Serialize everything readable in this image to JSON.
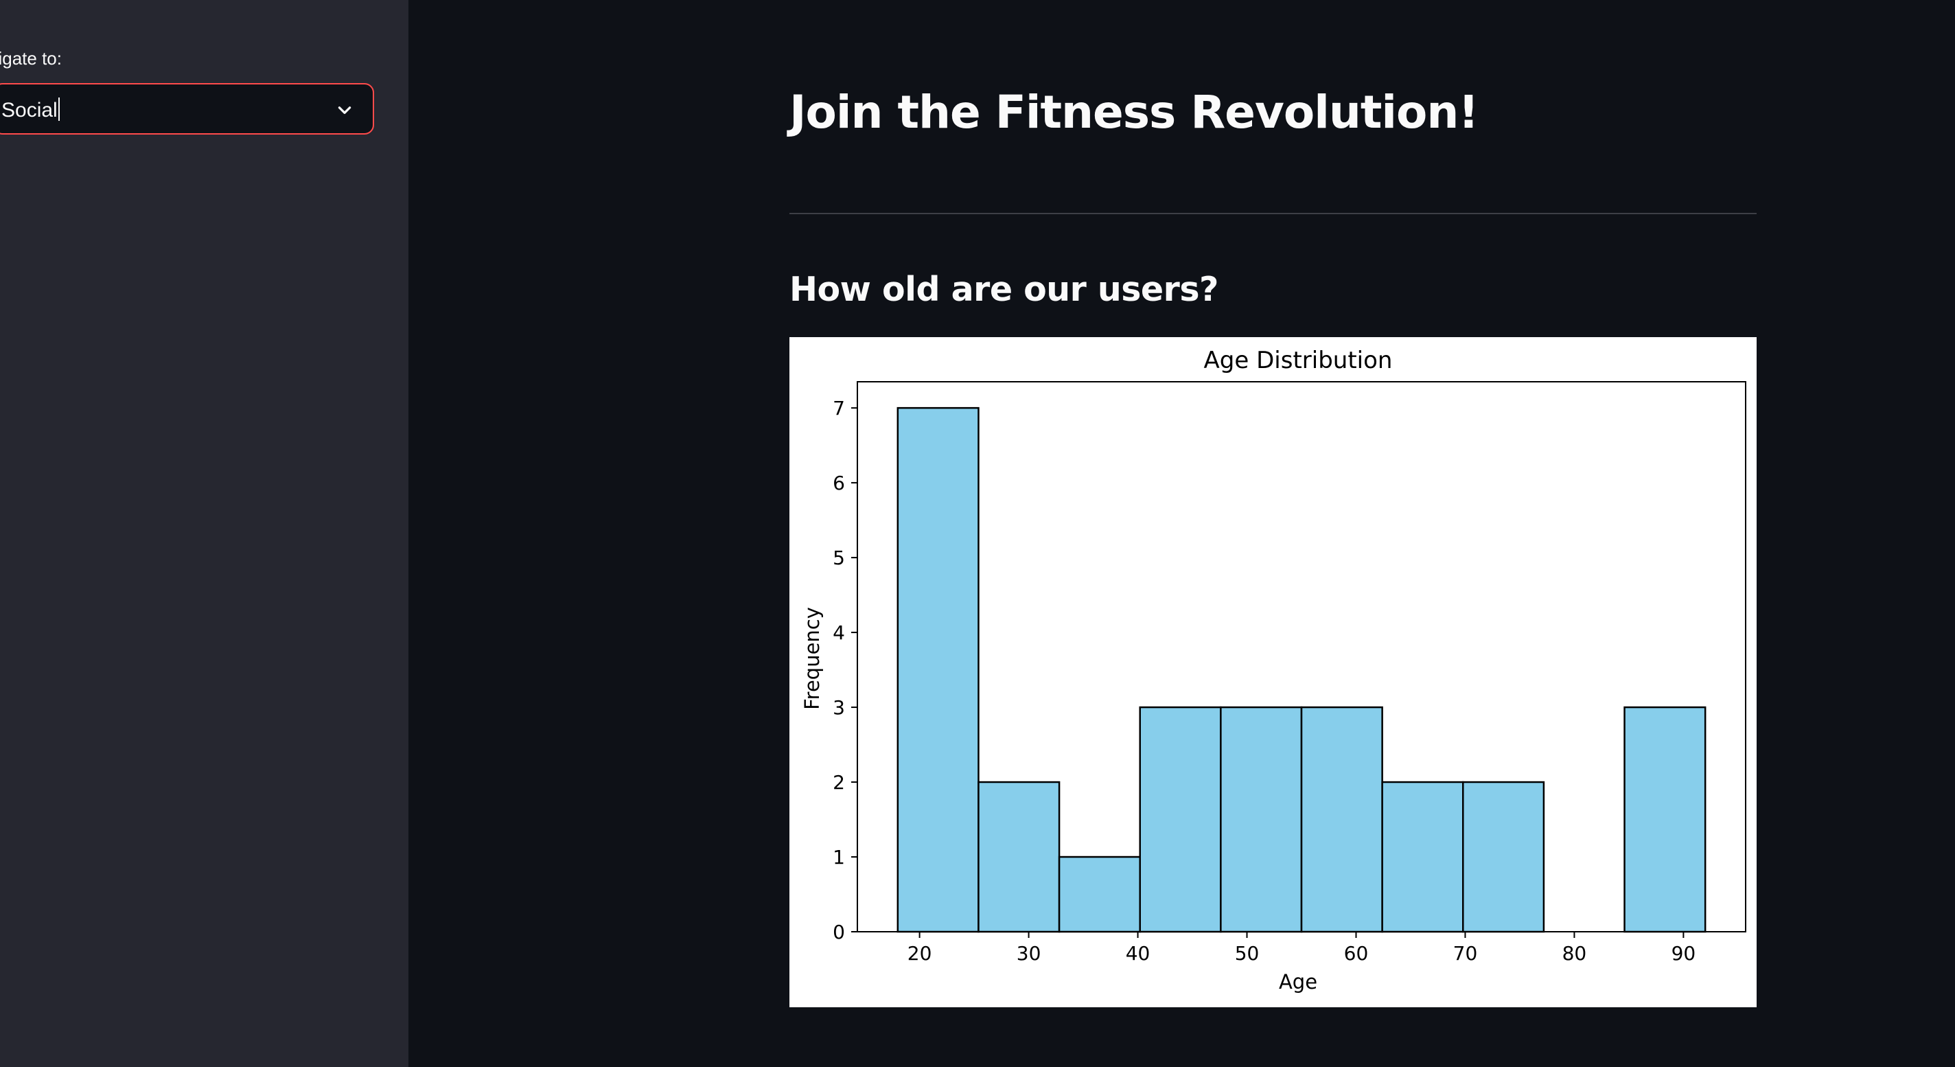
{
  "sidebar": {
    "nav_label": "avigate to:",
    "select": {
      "value": "Social"
    }
  },
  "main": {
    "title": "Join the Fitness Revolution!",
    "subheader": "How old are our users?"
  },
  "colors": {
    "accent": "#ff4b4b",
    "bar_fill": "#87ceeb",
    "bar_edge": "#000000"
  },
  "chart_data": {
    "type": "bar",
    "title": "Age Distribution",
    "xlabel": "Age",
    "ylabel": "Frequency",
    "bins": [
      {
        "start": 18.0,
        "end": 25.4,
        "count": 7
      },
      {
        "start": 25.4,
        "end": 32.8,
        "count": 2
      },
      {
        "start": 32.8,
        "end": 40.2,
        "count": 1
      },
      {
        "start": 40.2,
        "end": 47.6,
        "count": 3
      },
      {
        "start": 47.6,
        "end": 55.0,
        "count": 3
      },
      {
        "start": 55.0,
        "end": 62.4,
        "count": 3
      },
      {
        "start": 62.4,
        "end": 69.8,
        "count": 2
      },
      {
        "start": 69.8,
        "end": 77.2,
        "count": 2
      },
      {
        "start": 77.2,
        "end": 84.6,
        "count": 0
      },
      {
        "start": 84.6,
        "end": 92.0,
        "count": 3
      }
    ],
    "xlim": [
      14.3,
      95.7
    ],
    "ylim": [
      0,
      7.35
    ],
    "xticks": [
      20,
      30,
      40,
      50,
      60,
      70,
      80,
      90
    ],
    "yticks": [
      0,
      1,
      2,
      3,
      4,
      5,
      6,
      7
    ],
    "grid": false
  }
}
